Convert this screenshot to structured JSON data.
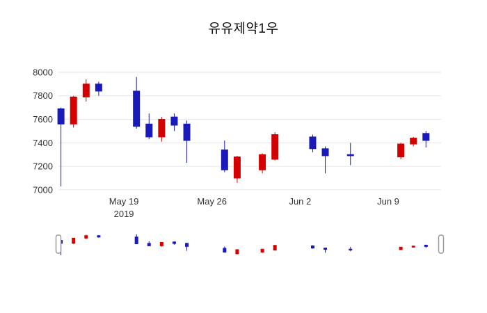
{
  "page": {
    "background": "#ffffff"
  },
  "chart_data": {
    "type": "candlestick",
    "title": "유유제약1우",
    "increasing_color": "#d40000",
    "decreasing_color": "#1a1ab8",
    "grid_color": "#e6e6e6",
    "tick_label_color": "#333333",
    "grid": "horizontal-only",
    "legend": "none",
    "rangeslider": true,
    "y_ticks": [
      7000,
      7200,
      7400,
      7600,
      7800,
      8000
    ],
    "y_domain": [
      6970,
      8047
    ],
    "ylim": [
      7000,
      8000
    ],
    "x_start_date": "2019-05-13",
    "x_domain": [
      0.8,
      31.2
    ],
    "x_ticks": [
      {
        "date": "2019-05-19",
        "label": "May 19",
        "sublabel": "2019"
      },
      {
        "date": "2019-05-26",
        "label": "May 26"
      },
      {
        "date": "2019-06-02",
        "label": "Jun 2"
      },
      {
        "date": "2019-06-09",
        "label": "Jun 9"
      }
    ],
    "ohlc": [
      {
        "date": "2019-05-14",
        "open": 7690,
        "high": 7700,
        "low": 7030,
        "close": 7560
      },
      {
        "date": "2019-05-15",
        "open": 7560,
        "high": 7800,
        "low": 7530,
        "close": 7790
      },
      {
        "date": "2019-05-16",
        "open": 7790,
        "high": 7940,
        "low": 7750,
        "close": 7900
      },
      {
        "date": "2019-05-17",
        "open": 7900,
        "high": 7920,
        "low": 7800,
        "close": 7840
      },
      {
        "date": "2019-05-20",
        "open": 7840,
        "high": 7960,
        "low": 7520,
        "close": 7540
      },
      {
        "date": "2019-05-21",
        "open": 7560,
        "high": 7650,
        "low": 7430,
        "close": 7450
      },
      {
        "date": "2019-05-22",
        "open": 7450,
        "high": 7620,
        "low": 7410,
        "close": 7600
      },
      {
        "date": "2019-05-23",
        "open": 7620,
        "high": 7650,
        "low": 7500,
        "close": 7550
      },
      {
        "date": "2019-05-24",
        "open": 7560,
        "high": 7590,
        "low": 7230,
        "close": 7420
      },
      {
        "date": "2019-05-27",
        "open": 7340,
        "high": 7420,
        "low": 7150,
        "close": 7170
      },
      {
        "date": "2019-05-28",
        "open": 7100,
        "high": 7290,
        "low": 7060,
        "close": 7280
      },
      {
        "date": "2019-05-30",
        "open": 7170,
        "high": 7310,
        "low": 7140,
        "close": 7300
      },
      {
        "date": "2019-05-31",
        "open": 7260,
        "high": 7490,
        "low": 7250,
        "close": 7470
      },
      {
        "date": "2019-06-03",
        "open": 7450,
        "high": 7470,
        "low": 7320,
        "close": 7350
      },
      {
        "date": "2019-06-04",
        "open": 7350,
        "high": 7370,
        "low": 7140,
        "close": 7290
      },
      {
        "date": "2019-06-06",
        "open": 7300,
        "high": 7400,
        "low": 7210,
        "close": 7290
      },
      {
        "date": "2019-06-10",
        "open": 7280,
        "high": 7400,
        "low": 7260,
        "close": 7390
      },
      {
        "date": "2019-06-11",
        "open": 7390,
        "high": 7450,
        "low": 7370,
        "close": 7440
      },
      {
        "date": "2019-06-12",
        "open": 7480,
        "high": 7500,
        "low": 7360,
        "close": 7420
      }
    ]
  }
}
